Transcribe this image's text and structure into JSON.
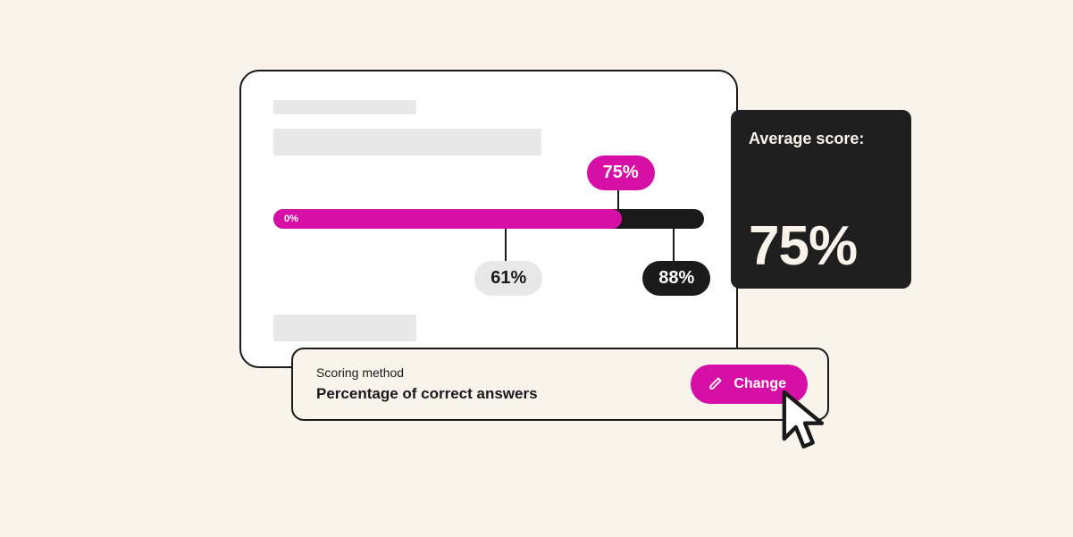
{
  "colors": {
    "canvas_bg": "#f9f3ec",
    "card_bg": "#ffffff",
    "border_dark": "#1a1a1a",
    "skeleton": "#e8e8e8",
    "accent": "#d610a6",
    "dark_box": "#1f1f1f",
    "dark_box_text": "#f9f3ec",
    "white": "#ffffff"
  },
  "slider": {
    "min_label": "0%",
    "fill_percent": 81,
    "markers": [
      {
        "key": "grey",
        "value": 61,
        "label": "61%",
        "position_percent": 54,
        "side": "below",
        "pill_style": "grey"
      },
      {
        "key": "magenta",
        "value": 75,
        "label": "75%",
        "position_percent": 80,
        "side": "above",
        "pill_style": "magenta"
      },
      {
        "key": "dark",
        "value": 88,
        "label": "88%",
        "position_percent": 93,
        "side": "below",
        "pill_style": "dark"
      }
    ]
  },
  "score_box": {
    "title": "Average score:",
    "value": "75%"
  },
  "method_bar": {
    "label": "Scoring method",
    "value": "Percentage of correct answers",
    "button": "Change"
  }
}
